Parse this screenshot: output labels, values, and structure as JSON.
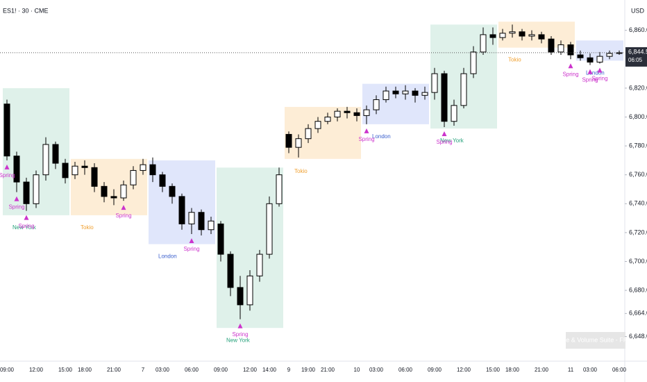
{
  "chart_data": {
    "type": "candlestick",
    "title": "ES1! · 30 · CME",
    "currency": "USD",
    "watermark": "Price & Volume Suite - FREE",
    "ylim": [
      6631,
      6881
    ],
    "yticks": [
      {
        "value": 6860,
        "label": "6,860.0"
      },
      {
        "value": 6820,
        "label": "6,820.0"
      },
      {
        "value": 6800,
        "label": "6,800.0"
      },
      {
        "value": 6780,
        "label": "6,780.0"
      },
      {
        "value": 6760,
        "label": "6,760.0"
      },
      {
        "value": 6740,
        "label": "6,740.0"
      },
      {
        "value": 6720,
        "label": "6,720.0"
      },
      {
        "value": 6700,
        "label": "6,700.0"
      },
      {
        "value": 6680,
        "label": "6,680.0"
      },
      {
        "value": 6664,
        "label": "6,664.0"
      },
      {
        "value": 6648,
        "label": "6,648.0"
      }
    ],
    "last_price": {
      "value": 6844.5,
      "label": "6,844.5"
    },
    "countdown": "06:05",
    "categories": [
      "09:00",
      null,
      null,
      "12:00",
      null,
      null,
      "15:00",
      null,
      "18:00",
      null,
      null,
      "21:00",
      null,
      null,
      "7",
      null,
      "03:00",
      null,
      null,
      "06:00",
      null,
      null,
      "09:00",
      null,
      null,
      "12:00",
      null,
      "14:00",
      null,
      "9",
      null,
      "19:00",
      null,
      "21:00",
      null,
      null,
      "10",
      null,
      "03:00",
      null,
      null,
      "06:00",
      null,
      null,
      "09:00",
      null,
      null,
      "12:00",
      null,
      null,
      "15:00",
      null,
      "18:00",
      null,
      null,
      "21:00",
      null,
      null,
      "11",
      null,
      "03:00",
      null,
      null,
      "06:00"
    ],
    "open": [
      6809,
      6773,
      6755,
      6740,
      6760,
      6781,
      6768,
      6760,
      6766,
      6765,
      6752,
      6745,
      6744,
      6753,
      6763,
      6767,
      6760,
      6752,
      6745,
      6726,
      6734,
      6722,
      6726,
      6705,
      6682,
      6670,
      6690,
      6705,
      6740,
      6788,
      6779,
      6785,
      6792,
      6797,
      6800,
      6804,
      6803,
      6801,
      6805,
      6812,
      6818,
      6816,
      6818,
      6815,
      6817,
      6830,
      6797,
      6808,
      6830,
      6845,
      6857,
      6855,
      6858,
      6859,
      6856,
      6857,
      6854,
      6845,
      6850,
      6843,
      6841,
      6838,
      6842,
      6844
    ],
    "high": [
      6812,
      6776,
      6758,
      6763,
      6786,
      6783,
      6771,
      6769,
      6770,
      6768,
      6755,
      6750,
      6756,
      6766,
      6771,
      6772,
      6762,
      6754,
      6747,
      6737,
      6736,
      6731,
      6728,
      6707,
      6690,
      6694,
      6708,
      6745,
      6765,
      6790,
      6788,
      6795,
      6800,
      6803,
      6806,
      6807,
      6806,
      6808,
      6815,
      6821,
      6821,
      6822,
      6820,
      6821,
      6834,
      6832,
      6812,
      6834,
      6849,
      6862,
      6862,
      6861,
      6864,
      6861,
      6860,
      6859,
      6856,
      6853,
      6852,
      6846,
      6844,
      6845,
      6846,
      6846
    ],
    "low": [
      6770,
      6748,
      6735,
      6737,
      6756,
      6764,
      6754,
      6757,
      6760,
      6748,
      6741,
      6739,
      6742,
      6750,
      6760,
      6755,
      6748,
      6740,
      6722,
      6719,
      6718,
      6719,
      6700,
      6676,
      6660,
      6666,
      6686,
      6702,
      6738,
      6775,
      6772,
      6782,
      6789,
      6795,
      6797,
      6799,
      6797,
      6795,
      6802,
      6810,
      6813,
      6812,
      6810,
      6812,
      6812,
      6793,
      6794,
      6806,
      6827,
      6843,
      6850,
      6853,
      6855,
      6853,
      6853,
      6851,
      6843,
      6843,
      6840,
      6839,
      6836,
      6837,
      6840,
      6843
    ],
    "close": [
      6773,
      6755,
      6740,
      6760,
      6781,
      6768,
      6758,
      6766,
      6765,
      6752,
      6745,
      6744,
      6753,
      6763,
      6767,
      6760,
      6752,
      6745,
      6726,
      6734,
      6722,
      6728,
      6705,
      6682,
      6670,
      6690,
      6705,
      6740,
      6760,
      6779,
      6785,
      6792,
      6797,
      6800,
      6804,
      6803,
      6801,
      6805,
      6812,
      6818,
      6816,
      6818,
      6815,
      6817,
      6830,
      6797,
      6808,
      6830,
      6845,
      6857,
      6855,
      6858,
      6859,
      6856,
      6857,
      6854,
      6845,
      6850,
      6843,
      6841,
      6838,
      6842,
      6844,
      6844.5
    ],
    "bull_color": "#ffffff",
    "bear_color": "#000000",
    "sessions": [
      {
        "label": "New York",
        "start": 0,
        "end": 6,
        "top": 6820,
        "bottom": 6732,
        "color": "#26a17b",
        "fill": "#dff1ea"
      },
      {
        "label": "Tokio",
        "start": 7,
        "end": 14,
        "top": 6771,
        "bottom": 6732,
        "color": "#f0a030",
        "fill": "#fdedd6"
      },
      {
        "label": "London",
        "start": 15,
        "end": 21,
        "top": 6770,
        "bottom": 6712,
        "color": "#3a5fcd",
        "fill": "#e0e6fb"
      },
      {
        "label": "New York",
        "start": 22,
        "end": 28,
        "top": 6765,
        "bottom": 6654,
        "color": "#26a17b",
        "fill": "#dff1ea"
      },
      {
        "label": "Tokio",
        "start": 29,
        "end": 36,
        "top": 6807,
        "bottom": 6771,
        "color": "#f0a030",
        "fill": "#fdedd6"
      },
      {
        "label": "London",
        "start": 37,
        "end": 43,
        "top": 6823,
        "bottom": 6795,
        "color": "#3a5fcd",
        "fill": "#e0e6fb"
      },
      {
        "label": "New York",
        "start": 44,
        "end": 50,
        "top": 6864,
        "bottom": 6792,
        "color": "#26a17b",
        "fill": "#dff1ea"
      },
      {
        "label": "Tokio",
        "start": 51,
        "end": 58,
        "top": 6866,
        "bottom": 6848,
        "color": "#f0a030",
        "fill": "#fdedd6"
      },
      {
        "label": "London",
        "start": 59,
        "end": 63,
        "top": 6853,
        "bottom": 6839,
        "color": "#3a5fcd",
        "fill": "#e0e6fb"
      }
    ],
    "signals": [
      {
        "index": 0,
        "label": "Spring"
      },
      {
        "index": 1,
        "label": "Spring"
      },
      {
        "index": 2,
        "label": "Spring"
      },
      {
        "index": 12,
        "label": "Spring"
      },
      {
        "index": 19,
        "label": "Spring"
      },
      {
        "index": 24,
        "label": "Spring"
      },
      {
        "index": 37,
        "label": "Spring"
      },
      {
        "index": 45,
        "label": "Spring"
      },
      {
        "index": 58,
        "label": "Spring"
      },
      {
        "index": 60,
        "label": "Spring"
      },
      {
        "index": 61,
        "label": "Spring"
      }
    ],
    "signal_color": "#cc33cc"
  }
}
